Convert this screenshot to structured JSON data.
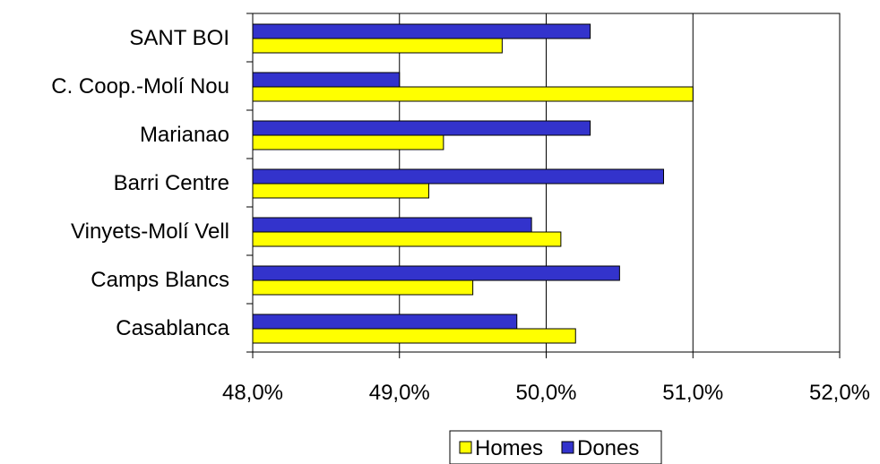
{
  "chart_data": {
    "type": "bar",
    "orientation": "horizontal",
    "categories": [
      "SANT BOI",
      "C. Coop.-Molí Nou",
      "Marianao",
      "Barri Centre",
      "Vinyets-Molí Vell",
      "Camps Blancs",
      "Casablanca"
    ],
    "series": [
      {
        "name": "Dones",
        "color": "#3333cc",
        "values": [
          50.3,
          49.0,
          50.3,
          50.8,
          49.9,
          50.5,
          49.8
        ]
      },
      {
        "name": "Homes",
        "color": "#ffff00",
        "values": [
          49.7,
          51.0,
          49.3,
          49.2,
          50.1,
          49.5,
          50.2
        ]
      }
    ],
    "xlim": [
      48.0,
      52.0
    ],
    "x_ticks": [
      48.0,
      49.0,
      50.0,
      51.0,
      52.0
    ],
    "tick_labels": [
      "48,0%",
      "49,0%",
      "50,0%",
      "51,0%",
      "52,0%"
    ],
    "grid": "vertical",
    "legend": {
      "position": "bottom",
      "entries": [
        {
          "name": "Homes",
          "color": "#ffff00"
        },
        {
          "name": "Dones",
          "color": "#3333cc"
        }
      ]
    }
  }
}
